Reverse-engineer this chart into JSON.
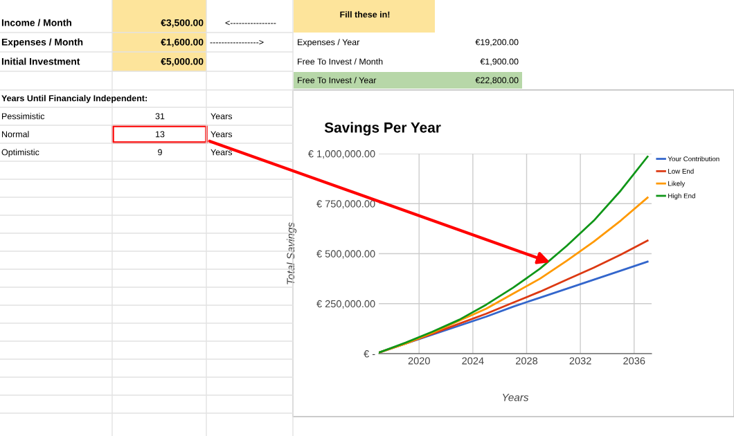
{
  "chart_data": {
    "type": "line",
    "title": "Savings Per Year",
    "xlabel": "Years",
    "ylabel": "Total Savings",
    "x": [
      2017,
      2019,
      2021,
      2023,
      2025,
      2027,
      2029,
      2031,
      2033,
      2035,
      2037
    ],
    "series": [
      {
        "name": "Your Contribution",
        "color": "#3366cc",
        "values": [
          5000,
          50000,
          95000,
          140000,
          185000,
          235000,
          280000,
          325000,
          370000,
          415000,
          460000
        ]
      },
      {
        "name": "Low End",
        "color": "#dc3912",
        "values": [
          5000,
          50000,
          100000,
          150000,
          200000,
          255000,
          310000,
          370000,
          430000,
          495000,
          565000
        ]
      },
      {
        "name": "Likely",
        "color": "#ff9900",
        "values": [
          5000,
          50000,
          105000,
          165000,
          225000,
          300000,
          375000,
          465000,
          560000,
          665000,
          780000
        ]
      },
      {
        "name": "High End",
        "color": "#109618",
        "values": [
          5000,
          55000,
          110000,
          170000,
          245000,
          330000,
          425000,
          540000,
          665000,
          815000,
          985000
        ]
      }
    ],
    "xlim": [
      2017,
      2037.3
    ],
    "xticks": [
      2020,
      2024,
      2028,
      2032,
      2036
    ],
    "ylim": [
      0,
      1000000
    ],
    "yticks": [
      {
        "value": 0,
        "label": "€ -"
      },
      {
        "value": 250000,
        "label": "€ 250,000.00"
      },
      {
        "value": 500000,
        "label": "€ 500,000.00"
      },
      {
        "value": 750000,
        "label": "€ 750,000.00"
      },
      {
        "value": 1000000,
        "label": "€ 1,000,000.00"
      }
    ],
    "grid": true,
    "legend": "right",
    "marker": "none",
    "line_style": "solid",
    "annotations": [
      "Fill these in!",
      "Income / Month",
      "€3,500.00",
      "<----------------",
      "Expenses / Month",
      "€1,600.00",
      "----------------->",
      "Expenses / Year",
      "€19,200.00",
      "Initial Investment",
      "€5,000.00",
      "Free To Invest / Month",
      "€1,900.00",
      "Free To Invest / Year",
      "€22,800.00",
      "Years Until Financialy Independent:",
      "Pessimistic",
      "31",
      "Years",
      "Normal",
      "13",
      "Years",
      "Optimistic",
      "9",
      "Years"
    ]
  }
}
